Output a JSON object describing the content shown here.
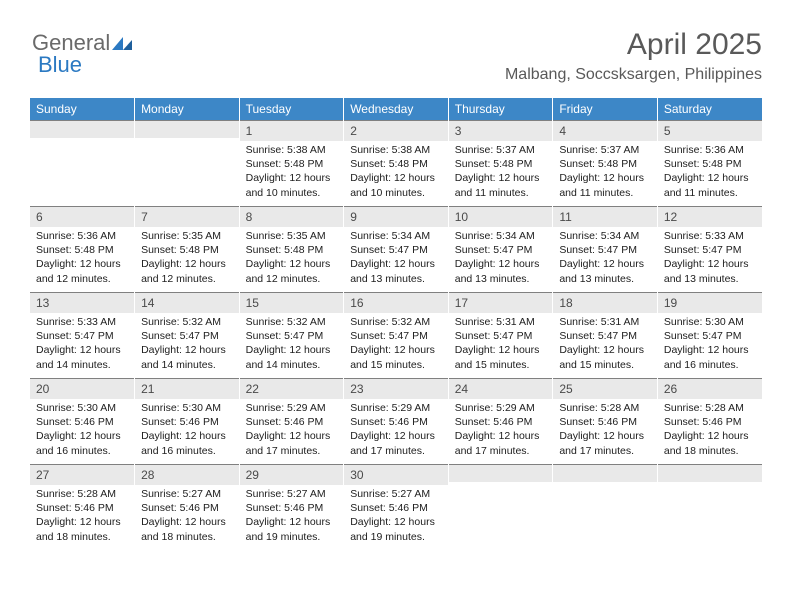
{
  "logo": {
    "text1": "General",
    "text2": "Blue"
  },
  "header": {
    "title": "April 2025",
    "location": "Malbang, Soccsksargen, Philippines"
  },
  "colors": {
    "header_bg": "#3d87c7",
    "header_text": "#ffffff",
    "daynum_bg": "#e9e9e9",
    "daynum_text": "#4a4a4a",
    "title_text": "#595959",
    "border": "#808080",
    "logo_gray": "#6a6a6a",
    "logo_blue": "#2b79c2"
  },
  "typography": {
    "title_fontsize": 30,
    "location_fontsize": 16,
    "weekday_fontsize": 12,
    "daynum_fontsize": 12,
    "body_fontsize": 10.5
  },
  "weekdays": [
    "Sunday",
    "Monday",
    "Tuesday",
    "Wednesday",
    "Thursday",
    "Friday",
    "Saturday"
  ],
  "weeks": [
    [
      {
        "blank": true
      },
      {
        "blank": true
      },
      {
        "day": "1",
        "sunrise": "Sunrise: 5:38 AM",
        "sunset": "Sunset: 5:48 PM",
        "daylight": "Daylight: 12 hours and 10 minutes."
      },
      {
        "day": "2",
        "sunrise": "Sunrise: 5:38 AM",
        "sunset": "Sunset: 5:48 PM",
        "daylight": "Daylight: 12 hours and 10 minutes."
      },
      {
        "day": "3",
        "sunrise": "Sunrise: 5:37 AM",
        "sunset": "Sunset: 5:48 PM",
        "daylight": "Daylight: 12 hours and 11 minutes."
      },
      {
        "day": "4",
        "sunrise": "Sunrise: 5:37 AM",
        "sunset": "Sunset: 5:48 PM",
        "daylight": "Daylight: 12 hours and 11 minutes."
      },
      {
        "day": "5",
        "sunrise": "Sunrise: 5:36 AM",
        "sunset": "Sunset: 5:48 PM",
        "daylight": "Daylight: 12 hours and 11 minutes."
      }
    ],
    [
      {
        "day": "6",
        "sunrise": "Sunrise: 5:36 AM",
        "sunset": "Sunset: 5:48 PM",
        "daylight": "Daylight: 12 hours and 12 minutes."
      },
      {
        "day": "7",
        "sunrise": "Sunrise: 5:35 AM",
        "sunset": "Sunset: 5:48 PM",
        "daylight": "Daylight: 12 hours and 12 minutes."
      },
      {
        "day": "8",
        "sunrise": "Sunrise: 5:35 AM",
        "sunset": "Sunset: 5:48 PM",
        "daylight": "Daylight: 12 hours and 12 minutes."
      },
      {
        "day": "9",
        "sunrise": "Sunrise: 5:34 AM",
        "sunset": "Sunset: 5:47 PM",
        "daylight": "Daylight: 12 hours and 13 minutes."
      },
      {
        "day": "10",
        "sunrise": "Sunrise: 5:34 AM",
        "sunset": "Sunset: 5:47 PM",
        "daylight": "Daylight: 12 hours and 13 minutes."
      },
      {
        "day": "11",
        "sunrise": "Sunrise: 5:34 AM",
        "sunset": "Sunset: 5:47 PM",
        "daylight": "Daylight: 12 hours and 13 minutes."
      },
      {
        "day": "12",
        "sunrise": "Sunrise: 5:33 AM",
        "sunset": "Sunset: 5:47 PM",
        "daylight": "Daylight: 12 hours and 13 minutes."
      }
    ],
    [
      {
        "day": "13",
        "sunrise": "Sunrise: 5:33 AM",
        "sunset": "Sunset: 5:47 PM",
        "daylight": "Daylight: 12 hours and 14 minutes."
      },
      {
        "day": "14",
        "sunrise": "Sunrise: 5:32 AM",
        "sunset": "Sunset: 5:47 PM",
        "daylight": "Daylight: 12 hours and 14 minutes."
      },
      {
        "day": "15",
        "sunrise": "Sunrise: 5:32 AM",
        "sunset": "Sunset: 5:47 PM",
        "daylight": "Daylight: 12 hours and 14 minutes."
      },
      {
        "day": "16",
        "sunrise": "Sunrise: 5:32 AM",
        "sunset": "Sunset: 5:47 PM",
        "daylight": "Daylight: 12 hours and 15 minutes."
      },
      {
        "day": "17",
        "sunrise": "Sunrise: 5:31 AM",
        "sunset": "Sunset: 5:47 PM",
        "daylight": "Daylight: 12 hours and 15 minutes."
      },
      {
        "day": "18",
        "sunrise": "Sunrise: 5:31 AM",
        "sunset": "Sunset: 5:47 PM",
        "daylight": "Daylight: 12 hours and 15 minutes."
      },
      {
        "day": "19",
        "sunrise": "Sunrise: 5:30 AM",
        "sunset": "Sunset: 5:47 PM",
        "daylight": "Daylight: 12 hours and 16 minutes."
      }
    ],
    [
      {
        "day": "20",
        "sunrise": "Sunrise: 5:30 AM",
        "sunset": "Sunset: 5:46 PM",
        "daylight": "Daylight: 12 hours and 16 minutes."
      },
      {
        "day": "21",
        "sunrise": "Sunrise: 5:30 AM",
        "sunset": "Sunset: 5:46 PM",
        "daylight": "Daylight: 12 hours and 16 minutes."
      },
      {
        "day": "22",
        "sunrise": "Sunrise: 5:29 AM",
        "sunset": "Sunset: 5:46 PM",
        "daylight": "Daylight: 12 hours and 17 minutes."
      },
      {
        "day": "23",
        "sunrise": "Sunrise: 5:29 AM",
        "sunset": "Sunset: 5:46 PM",
        "daylight": "Daylight: 12 hours and 17 minutes."
      },
      {
        "day": "24",
        "sunrise": "Sunrise: 5:29 AM",
        "sunset": "Sunset: 5:46 PM",
        "daylight": "Daylight: 12 hours and 17 minutes."
      },
      {
        "day": "25",
        "sunrise": "Sunrise: 5:28 AM",
        "sunset": "Sunset: 5:46 PM",
        "daylight": "Daylight: 12 hours and 17 minutes."
      },
      {
        "day": "26",
        "sunrise": "Sunrise: 5:28 AM",
        "sunset": "Sunset: 5:46 PM",
        "daylight": "Daylight: 12 hours and 18 minutes."
      }
    ],
    [
      {
        "day": "27",
        "sunrise": "Sunrise: 5:28 AM",
        "sunset": "Sunset: 5:46 PM",
        "daylight": "Daylight: 12 hours and 18 minutes."
      },
      {
        "day": "28",
        "sunrise": "Sunrise: 5:27 AM",
        "sunset": "Sunset: 5:46 PM",
        "daylight": "Daylight: 12 hours and 18 minutes."
      },
      {
        "day": "29",
        "sunrise": "Sunrise: 5:27 AM",
        "sunset": "Sunset: 5:46 PM",
        "daylight": "Daylight: 12 hours and 19 minutes."
      },
      {
        "day": "30",
        "sunrise": "Sunrise: 5:27 AM",
        "sunset": "Sunset: 5:46 PM",
        "daylight": "Daylight: 12 hours and 19 minutes."
      },
      {
        "blank": true
      },
      {
        "blank": true
      },
      {
        "blank": true
      }
    ]
  ]
}
